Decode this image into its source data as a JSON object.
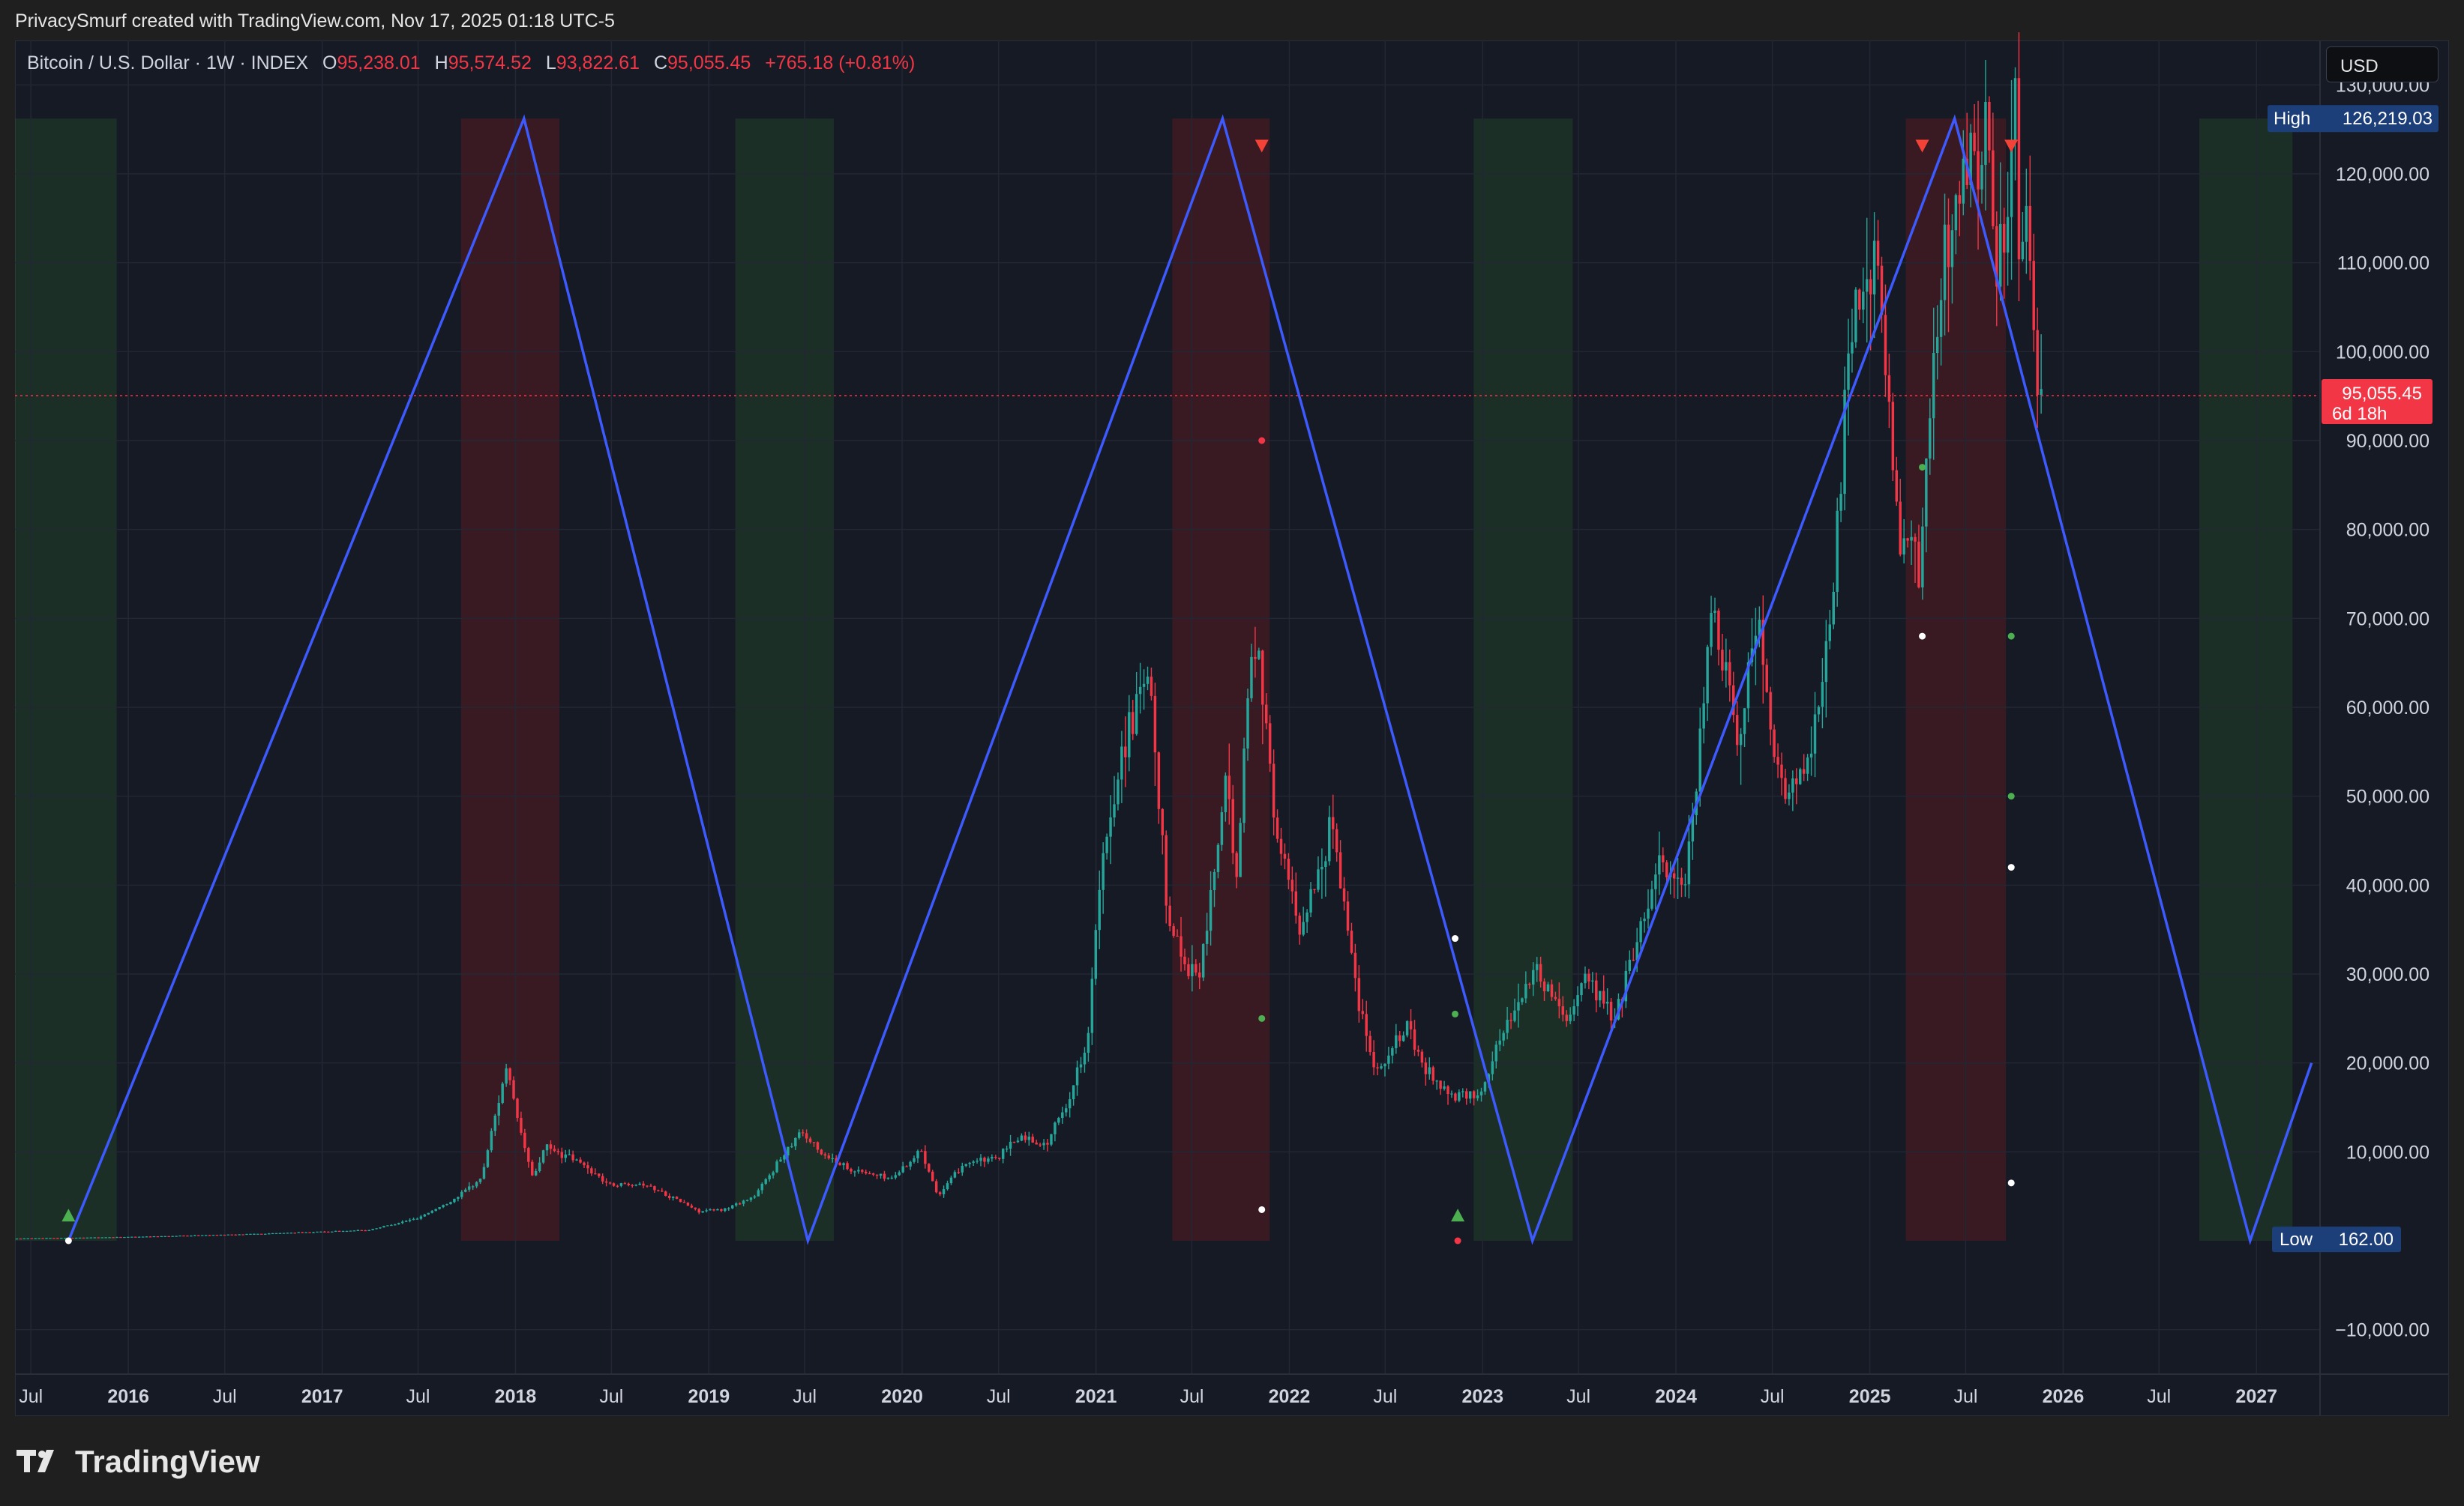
{
  "header": {
    "credit": "PrivacySmurf created with TradingView.com, Nov 17, 2025 01:18 UTC-5"
  },
  "legend": {
    "symbol": "Bitcoin / U.S. Dollar · 1W · INDEX",
    "o_label": "O",
    "o": "95,238.01",
    "h_label": "H",
    "h": "95,574.52",
    "l_label": "L",
    "l": "93,822.61",
    "c_label": "C",
    "c": "95,055.45",
    "change": "+765.18 (+0.81%)"
  },
  "currency_button": "USD",
  "footer": {
    "brand": "TradingView",
    "logo_icon": "tradingview-logo-icon"
  },
  "colors": {
    "background": "#161a25",
    "up": "#26a69a",
    "down": "#f23645",
    "cycle_line": "#3d5afe",
    "green_zone": "rgba(46,125,50,0.22)",
    "red_zone": "rgba(183,28,28,0.22)",
    "grid": "#232734",
    "axis_text": "#d1d4dc"
  },
  "chart_data": {
    "type": "candlestick",
    "title": "Bitcoin / U.S. Dollar · 1W · INDEX",
    "x_range": [
      "2015-06-01",
      "2027-05-01"
    ],
    "y_range": [
      -15000,
      135000
    ],
    "y_ticks": [
      -10000,
      10000,
      20000,
      30000,
      40000,
      50000,
      60000,
      70000,
      80000,
      90000,
      100000,
      110000,
      120000,
      130000
    ],
    "y_tick_labels": [
      "−10,000.00",
      "10,000.00",
      "20,000.00",
      "30,000.00",
      "40,000.00",
      "50,000.00",
      "60,000.00",
      "70,000.00",
      "80,000.00",
      "90,000.00",
      "100,000.00",
      "110,000.00",
      "120,000.00",
      "130,000.00"
    ],
    "x_ticks": [
      {
        "date": "2015-07-01",
        "label": "Jul"
      },
      {
        "date": "2016-01-01",
        "label": "2016"
      },
      {
        "date": "2016-07-01",
        "label": "Jul"
      },
      {
        "date": "2017-01-01",
        "label": "2017"
      },
      {
        "date": "2017-07-01",
        "label": "Jul"
      },
      {
        "date": "2018-01-01",
        "label": "2018"
      },
      {
        "date": "2018-07-01",
        "label": "Jul"
      },
      {
        "date": "2019-01-01",
        "label": "2019"
      },
      {
        "date": "2019-07-01",
        "label": "Jul"
      },
      {
        "date": "2020-01-01",
        "label": "2020"
      },
      {
        "date": "2020-07-01",
        "label": "Jul"
      },
      {
        "date": "2021-01-01",
        "label": "2021"
      },
      {
        "date": "2021-07-01",
        "label": "Jul"
      },
      {
        "date": "2022-01-01",
        "label": "2022"
      },
      {
        "date": "2022-07-01",
        "label": "Jul"
      },
      {
        "date": "2023-01-01",
        "label": "2023"
      },
      {
        "date": "2023-07-01",
        "label": "Jul"
      },
      {
        "date": "2024-01-01",
        "label": "2024"
      },
      {
        "date": "2024-07-01",
        "label": "Jul"
      },
      {
        "date": "2025-01-01",
        "label": "2025"
      },
      {
        "date": "2025-07-01",
        "label": "Jul"
      },
      {
        "date": "2026-01-01",
        "label": "2026"
      },
      {
        "date": "2026-07-01",
        "label": "Jul"
      },
      {
        "date": "2027-01-01",
        "label": "2027"
      }
    ],
    "current_price": {
      "value": 95055.45,
      "label": "95,055.45",
      "countdown": "6d 18h"
    },
    "high_marker": {
      "label": "High",
      "value": 126219.03,
      "value_label": "126,219.03"
    },
    "low_marker": {
      "label": "Low",
      "value": 162.0,
      "value_label": "162.00"
    },
    "green_zones": [
      [
        "2015-06-01",
        "2015-12-10"
      ],
      [
        "2019-02-20",
        "2019-08-25"
      ],
      [
        "2022-12-15",
        "2023-06-20"
      ],
      [
        "2026-09-15",
        "2027-03-10"
      ]
    ],
    "red_zones": [
      [
        "2017-09-20",
        "2018-03-25"
      ],
      [
        "2021-05-25",
        "2021-11-25"
      ],
      [
        "2025-03-10",
        "2025-09-15"
      ]
    ],
    "cycle_line": [
      [
        "2015-09-10",
        0
      ],
      [
        "2018-01-17",
        126219
      ],
      [
        "2019-07-07",
        0
      ],
      [
        "2021-08-28",
        126219
      ],
      [
        "2023-04-05",
        0
      ],
      [
        "2025-06-10",
        126219
      ],
      [
        "2026-12-20",
        0
      ],
      [
        "2027-04-15",
        20000
      ]
    ],
    "signals": {
      "up_triangles": [
        [
          "2015-09-10",
          2000
        ],
        [
          "2022-11-15",
          2000
        ]
      ],
      "down_triangles": [
        [
          "2021-11-10",
          124000
        ],
        [
          "2025-04-10",
          124000
        ],
        [
          "2025-09-25",
          124000
        ]
      ],
      "white_dots": [
        [
          "2015-09-10",
          0
        ],
        [
          "2021-11-10",
          3500
        ],
        [
          "2022-11-10",
          34000
        ],
        [
          "2025-04-10",
          68000
        ],
        [
          "2025-09-25",
          42000
        ],
        [
          "2025-09-25",
          6500
        ]
      ],
      "red_dots": [
        [
          "2021-11-10",
          90000
        ],
        [
          "2022-11-15",
          0
        ]
      ],
      "green_dots": [
        [
          "2021-11-10",
          25000
        ],
        [
          "2022-11-10",
          25500
        ],
        [
          "2025-04-10",
          87000
        ],
        [
          "2025-09-25",
          68000
        ],
        [
          "2025-09-25",
          50000
        ]
      ]
    },
    "price_path": [
      [
        "2015-06-01",
        240
      ],
      [
        "2016-01-01",
        430
      ],
      [
        "2016-07-01",
        670
      ],
      [
        "2017-01-01",
        1000
      ],
      [
        "2017-04-01",
        1200
      ],
      [
        "2017-07-01",
        2500
      ],
      [
        "2017-09-01",
        4300
      ],
      [
        "2017-11-01",
        7000
      ],
      [
        "2017-12-17",
        19500
      ],
      [
        "2018-01-15",
        12000
      ],
      [
        "2018-02-06",
        7000
      ],
      [
        "2018-03-01",
        10500
      ],
      [
        "2018-05-01",
        9000
      ],
      [
        "2018-07-01",
        6300
      ],
      [
        "2018-09-01",
        6500
      ],
      [
        "2018-11-20",
        4200
      ],
      [
        "2018-12-15",
        3300
      ],
      [
        "2019-02-01",
        3500
      ],
      [
        "2019-04-01",
        5000
      ],
      [
        "2019-06-26",
        12500
      ],
      [
        "2019-08-01",
        10000
      ],
      [
        "2019-10-01",
        8000
      ],
      [
        "2019-12-15",
        7000
      ],
      [
        "2020-02-10",
        10200
      ],
      [
        "2020-03-13",
        5000
      ],
      [
        "2020-05-01",
        8800
      ],
      [
        "2020-07-01",
        9200
      ],
      [
        "2020-08-15",
        11800
      ],
      [
        "2020-10-01",
        10700
      ],
      [
        "2020-11-15",
        16000
      ],
      [
        "2020-12-20",
        23000
      ],
      [
        "2021-01-10",
        39000
      ],
      [
        "2021-02-20",
        55000
      ],
      [
        "2021-04-14",
        63000
      ],
      [
        "2021-05-19",
        37000
      ],
      [
        "2021-06-22",
        31000
      ],
      [
        "2021-07-20",
        30000
      ],
      [
        "2021-09-06",
        51000
      ],
      [
        "2021-09-28",
        41000
      ],
      [
        "2021-10-20",
        64000
      ],
      [
        "2021-11-10",
        67000
      ],
      [
        "2021-12-05",
        48000
      ],
      [
        "2022-01-24",
        35000
      ],
      [
        "2022-03-28",
        47000
      ],
      [
        "2022-05-12",
        28000
      ],
      [
        "2022-06-18",
        19000
      ],
      [
        "2022-08-15",
        24000
      ],
      [
        "2022-09-15",
        19500
      ],
      [
        "2022-11-09",
        16000
      ],
      [
        "2022-12-30",
        16500
      ],
      [
        "2023-02-15",
        24000
      ],
      [
        "2023-04-14",
        30500
      ],
      [
        "2023-06-15",
        25000
      ],
      [
        "2023-07-15",
        30000
      ],
      [
        "2023-09-11",
        25000
      ],
      [
        "2023-10-25",
        34500
      ],
      [
        "2023-12-05",
        43000
      ],
      [
        "2024-01-23",
        39000
      ],
      [
        "2024-02-28",
        62000
      ],
      [
        "2024-03-14",
        72000
      ],
      [
        "2024-05-01",
        57000
      ],
      [
        "2024-06-07",
        71000
      ],
      [
        "2024-07-05",
        54000
      ],
      [
        "2024-08-05",
        50000
      ],
      [
        "2024-09-06",
        53000
      ],
      [
        "2024-10-29",
        72000
      ],
      [
        "2024-11-22",
        99000
      ],
      [
        "2024-12-17",
        108000
      ],
      [
        "2025-01-20",
        109000
      ],
      [
        "2025-02-28",
        79000
      ],
      [
        "2025-04-07",
        75000
      ],
      [
        "2025-05-22",
        111000
      ],
      [
        "2025-07-14",
        123000
      ],
      [
        "2025-08-14",
        124000
      ],
      [
        "2025-09-01",
        108000
      ],
      [
        "2025-10-06",
        126219
      ],
      [
        "2025-10-10",
        105000
      ],
      [
        "2025-10-28",
        115000
      ],
      [
        "2025-11-17",
        95055
      ]
    ]
  }
}
